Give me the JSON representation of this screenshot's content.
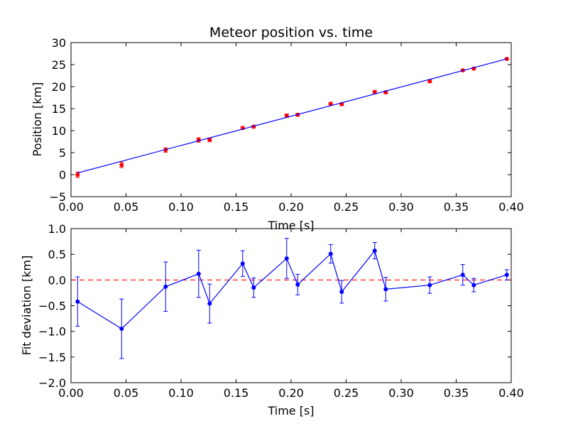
{
  "chart_data": [
    {
      "type": "scatter",
      "title": "Meteor position vs. time",
      "xlabel": "Time [s]",
      "ylabel": "Position [km]",
      "xlim": [
        0.0,
        0.4
      ],
      "ylim": [
        -5,
        30
      ],
      "xticks": [
        "0.00",
        "0.05",
        "0.10",
        "0.15",
        "0.20",
        "0.25",
        "0.30",
        "0.35",
        "0.40"
      ],
      "yticks": [
        "−5",
        "0",
        "5",
        "10",
        "15",
        "20",
        "25",
        "30"
      ],
      "grid": false,
      "colors": {
        "points": "#ff0000",
        "fit": "#0000ff"
      },
      "series": [
        {
          "kind": "errorbar-points",
          "x": [
            0.006,
            0.046,
            0.086,
            0.116,
            0.126,
            0.156,
            0.166,
            0.196,
            0.206,
            0.236,
            0.246,
            0.276,
            0.286,
            0.326,
            0.356,
            0.366,
            0.396
          ],
          "y": [
            0.0,
            2.2,
            5.6,
            7.9,
            7.9,
            10.6,
            10.9,
            13.4,
            13.6,
            16.1,
            16.0,
            18.8,
            18.7,
            21.2,
            23.7,
            24.1,
            26.3
          ],
          "yerr": [
            0.6,
            0.6,
            0.5,
            0.5,
            0.4,
            0.3,
            0.3,
            0.4,
            0.3,
            0.3,
            0.3,
            0.3,
            0.3,
            0.3,
            0.2,
            0.2,
            0.2
          ]
        },
        {
          "kind": "fit-line",
          "x": [
            0.006,
            0.396
          ],
          "y": [
            0.4,
            26.3
          ]
        }
      ]
    },
    {
      "type": "line",
      "title": "",
      "xlabel": "Time [s]",
      "ylabel": "Fit deviation [km]",
      "xlim": [
        0.0,
        0.4
      ],
      "ylim": [
        -2.0,
        1.0
      ],
      "xticks": [
        "0.00",
        "0.05",
        "0.10",
        "0.15",
        "0.20",
        "0.25",
        "0.30",
        "0.35",
        "0.40"
      ],
      "yticks": [
        "−2.0",
        "−1.5",
        "−1.0",
        "−0.5",
        "0.0",
        "0.5",
        "1.0"
      ],
      "grid": false,
      "colors": {
        "line": "#0000ff",
        "reference": "#ff0000"
      },
      "reference_line": 0.0,
      "series": [
        {
          "kind": "errorbar-line",
          "x": [
            0.006,
            0.046,
            0.086,
            0.116,
            0.126,
            0.156,
            0.166,
            0.196,
            0.206,
            0.236,
            0.246,
            0.276,
            0.286,
            0.326,
            0.356,
            0.366,
            0.396
          ],
          "y": [
            -0.42,
            -0.95,
            -0.13,
            0.12,
            -0.46,
            0.32,
            -0.15,
            0.42,
            -0.09,
            0.51,
            -0.23,
            0.57,
            -0.18,
            -0.1,
            0.1,
            -0.1,
            0.1
          ],
          "yerr": [
            0.48,
            0.58,
            0.48,
            0.46,
            0.38,
            0.25,
            0.19,
            0.39,
            0.2,
            0.18,
            0.22,
            0.16,
            0.23,
            0.16,
            0.2,
            0.13,
            0.1
          ]
        }
      ]
    }
  ]
}
